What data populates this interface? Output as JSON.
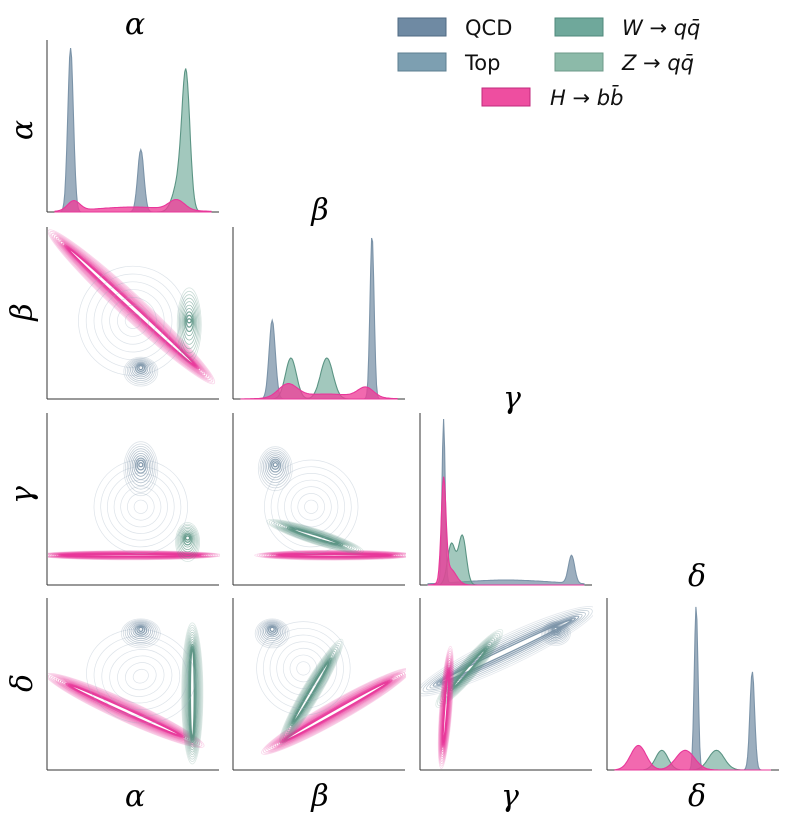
{
  "chart_data": {
    "type": "corner-plot (KDE density pairs)",
    "variables": [
      "α",
      "β",
      "γ",
      "δ"
    ],
    "legend": [
      {
        "label": "QCD",
        "color": "#6f8aa3"
      },
      {
        "label": "Top",
        "color": "#7d9fb1"
      },
      {
        "label": "W → qq̄",
        "color": "#6fa89b"
      },
      {
        "label": "Z → qq̄",
        "color": "#8cbaa9"
      },
      {
        "label": "H → bb̄",
        "color": "#ee4ea0"
      }
    ],
    "legend_position": "top-right",
    "diagonal_titles": [
      "α",
      "β",
      "γ",
      "δ"
    ],
    "row_labels": [
      "α",
      "β",
      "γ",
      "δ"
    ],
    "column_labels": [
      "α",
      "β",
      "γ",
      "δ"
    ],
    "grid": false,
    "diagonal": [
      {
        "variable": "α",
        "series": [
          {
            "group": "QCD",
            "peaks": [
              {
                "x": 0.1,
                "h": 1.0,
                "w": 0.018
              },
              {
                "x": 0.55,
                "h": 0.38,
                "w": 0.02
              }
            ]
          },
          {
            "group": "W/Z",
            "peaks": [
              {
                "x": 0.84,
                "h": 0.75,
                "w": 0.025
              },
              {
                "x": 0.8,
                "h": 0.2,
                "w": 0.04
              }
            ]
          },
          {
            "group": "H",
            "peaks": [
              {
                "x": 0.12,
                "h": 0.06,
                "w": 0.04
              },
              {
                "x": 0.5,
                "h": 0.03,
                "w": 0.25
              },
              {
                "x": 0.78,
                "h": 0.06,
                "w": 0.05
              }
            ]
          }
        ]
      },
      {
        "variable": "β",
        "series": [
          {
            "group": "QCD",
            "peaks": [
              {
                "x": 0.84,
                "h": 1.0,
                "w": 0.013
              },
              {
                "x": 0.2,
                "h": 0.48,
                "w": 0.02
              }
            ]
          },
          {
            "group": "W/Z",
            "peaks": [
              {
                "x": 0.32,
                "h": 0.25,
                "w": 0.035
              },
              {
                "x": 0.55,
                "h": 0.25,
                "w": 0.04
              }
            ]
          },
          {
            "group": "H",
            "peaks": [
              {
                "x": 0.3,
                "h": 0.08,
                "w": 0.06
              },
              {
                "x": 0.8,
                "h": 0.06,
                "w": 0.05
              },
              {
                "x": 0.55,
                "h": 0.03,
                "w": 0.2
              }
            ]
          }
        ]
      },
      {
        "variable": "γ",
        "series": [
          {
            "group": "QCD",
            "peaks": [
              {
                "x": 0.1,
                "h": 1.0,
                "w": 0.01
              },
              {
                "x": 0.92,
                "h": 0.17,
                "w": 0.02
              },
              {
                "x": 0.5,
                "h": 0.03,
                "w": 0.3
              }
            ]
          },
          {
            "group": "W/Z",
            "peaks": [
              {
                "x": 0.22,
                "h": 0.3,
                "w": 0.025
              },
              {
                "x": 0.15,
                "h": 0.25,
                "w": 0.025
              }
            ]
          },
          {
            "group": "H",
            "peaks": [
              {
                "x": 0.1,
                "h": 0.6,
                "w": 0.015
              },
              {
                "x": 0.14,
                "h": 0.1,
                "w": 0.04
              }
            ]
          }
        ]
      },
      {
        "variable": "δ",
        "series": [
          {
            "group": "QCD",
            "peaks": [
              {
                "x": 0.52,
                "h": 1.0,
                "w": 0.012
              },
              {
                "x": 0.88,
                "h": 0.6,
                "w": 0.015
              }
            ]
          },
          {
            "group": "W/Z",
            "peaks": [
              {
                "x": 0.3,
                "h": 0.12,
                "w": 0.04
              },
              {
                "x": 0.65,
                "h": 0.12,
                "w": 0.05
              }
            ]
          },
          {
            "group": "H",
            "peaks": [
              {
                "x": 0.15,
                "h": 0.15,
                "w": 0.05
              },
              {
                "x": 0.45,
                "h": 0.12,
                "w": 0.06
              }
            ]
          }
        ]
      }
    ],
    "off_diagonal": [
      {
        "row": "β",
        "col": "α",
        "clusters": [
          {
            "group": "H",
            "type": "band",
            "from": [
              0.1,
              0.9
            ],
            "to": [
              0.88,
              0.18
            ],
            "width": 0.04
          },
          {
            "group": "QCD",
            "type": "blob",
            "x": 0.55,
            "y": 0.15,
            "sx": 0.06,
            "sy": 0.05
          },
          {
            "group": "W/Z",
            "type": "blob",
            "x": 0.86,
            "y": 0.45,
            "sx": 0.04,
            "sy": 0.14
          },
          {
            "group": "QCD",
            "type": "haze",
            "x": 0.5,
            "y": 0.45,
            "sx": 0.35,
            "sy": 0.35
          }
        ]
      },
      {
        "row": "γ",
        "col": "α",
        "clusters": [
          {
            "group": "H",
            "type": "band",
            "from": [
              0.08,
              0.14
            ],
            "to": [
              0.88,
              0.14
            ],
            "width": 0.015
          },
          {
            "group": "QCD",
            "type": "blob",
            "x": 0.55,
            "y": 0.72,
            "sx": 0.06,
            "sy": 0.1
          },
          {
            "group": "W/Z",
            "type": "blob",
            "x": 0.85,
            "y": 0.25,
            "sx": 0.04,
            "sy": 0.07
          },
          {
            "group": "QCD",
            "type": "haze",
            "x": 0.55,
            "y": 0.45,
            "sx": 0.3,
            "sy": 0.3
          }
        ]
      },
      {
        "row": "δ",
        "col": "α",
        "clusters": [
          {
            "group": "H",
            "type": "band",
            "from": [
              0.12,
              0.48
            ],
            "to": [
              0.78,
              0.18
            ],
            "width": 0.035
          },
          {
            "group": "W/Z",
            "type": "band",
            "from": [
              0.88,
              0.7
            ],
            "to": [
              0.88,
              0.18
            ],
            "width": 0.035
          },
          {
            "group": "QCD",
            "type": "blob",
            "x": 0.55,
            "y": 0.85,
            "sx": 0.07,
            "sy": 0.05
          },
          {
            "group": "QCD",
            "type": "haze",
            "x": 0.55,
            "y": 0.55,
            "sx": 0.35,
            "sy": 0.3
          }
        ]
      },
      {
        "row": "γ",
        "col": "β",
        "clusters": [
          {
            "group": "H",
            "type": "band",
            "from": [
              0.28,
              0.14
            ],
            "to": [
              0.92,
              0.14
            ],
            "width": 0.016
          },
          {
            "group": "QCD",
            "type": "blob",
            "x": 0.22,
            "y": 0.72,
            "sx": 0.06,
            "sy": 0.08
          },
          {
            "group": "W/Z",
            "type": "band",
            "from": [
              0.35,
              0.3
            ],
            "to": [
              0.6,
              0.22
            ],
            "width": 0.025
          },
          {
            "group": "QCD",
            "type": "haze",
            "x": 0.45,
            "y": 0.45,
            "sx": 0.3,
            "sy": 0.3
          }
        ]
      },
      {
        "row": "δ",
        "col": "β",
        "clusters": [
          {
            "group": "H",
            "type": "band",
            "from": [
              0.3,
              0.15
            ],
            "to": [
              0.92,
              0.5
            ],
            "width": 0.035
          },
          {
            "group": "W/Z",
            "type": "band",
            "from": [
              0.35,
              0.28
            ],
            "to": [
              0.55,
              0.62
            ],
            "width": 0.03
          },
          {
            "group": "QCD",
            "type": "blob",
            "x": 0.2,
            "y": 0.85,
            "sx": 0.06,
            "sy": 0.05
          },
          {
            "group": "QCD",
            "type": "haze",
            "x": 0.4,
            "y": 0.6,
            "sx": 0.3,
            "sy": 0.3
          }
        ]
      },
      {
        "row": "δ",
        "col": "γ",
        "clusters": [
          {
            "group": "QCD",
            "type": "band",
            "from": [
              0.1,
              0.52
            ],
            "to": [
              0.9,
              0.9
            ],
            "width": 0.05
          },
          {
            "group": "W/Z",
            "type": "band",
            "from": [
              0.18,
              0.5
            ],
            "to": [
              0.35,
              0.7
            ],
            "width": 0.03
          },
          {
            "group": "H",
            "type": "band",
            "from": [
              0.1,
              0.15
            ],
            "to": [
              0.13,
              0.55
            ],
            "width": 0.02
          },
          {
            "group": "QCD",
            "type": "blob",
            "x": 0.82,
            "y": 0.85,
            "sx": 0.05,
            "sy": 0.04
          }
        ]
      }
    ]
  }
}
